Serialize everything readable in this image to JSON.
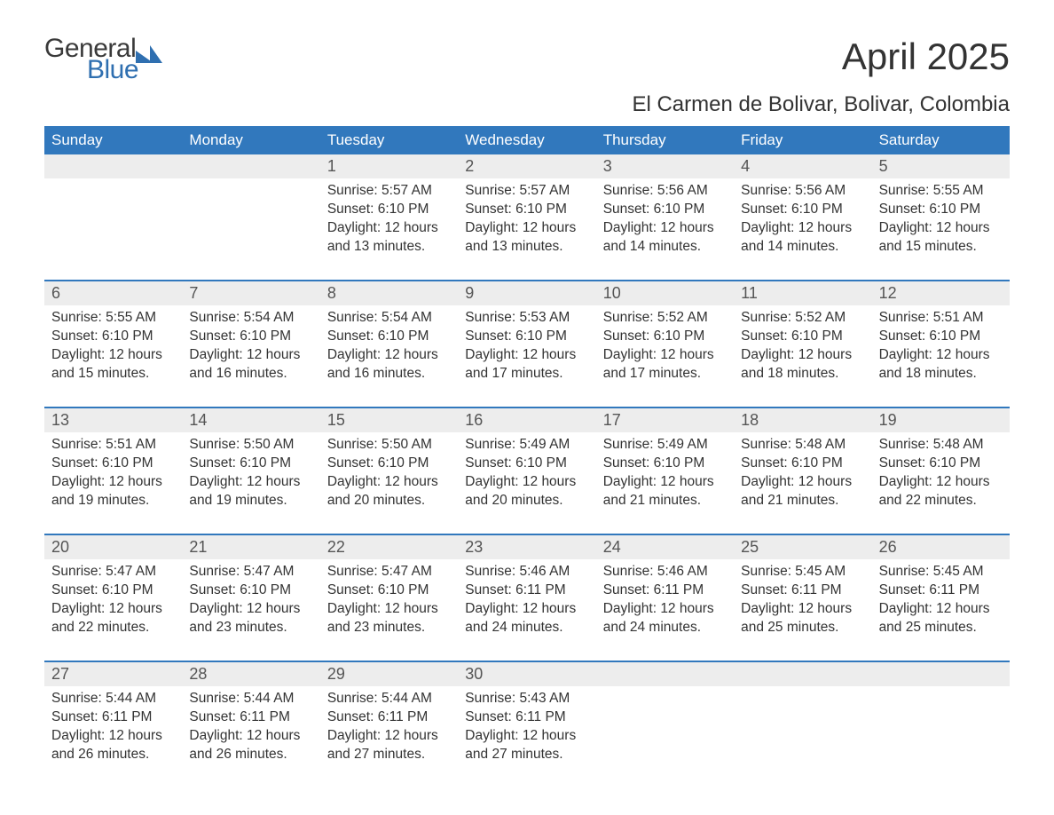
{
  "brand": {
    "line1": "General",
    "line2": "Blue"
  },
  "title": "April 2025",
  "location": "El Carmen de Bolivar, Bolivar, Colombia",
  "colors": {
    "header_bg": "#3178bd",
    "header_text": "#ffffff",
    "daynum_bg": "#ededed",
    "week_rule": "#3178bd",
    "body_text": "#333333",
    "brand_dark": "#3a3a3a",
    "brand_blue": "#2f6fb0",
    "page_bg": "#ffffff"
  },
  "typography": {
    "title_fontsize": 42,
    "location_fontsize": 24,
    "weekday_fontsize": 17,
    "daynum_fontsize": 18,
    "body_fontsize": 15.5,
    "font_family": "Arial"
  },
  "weekdays": [
    "Sunday",
    "Monday",
    "Tuesday",
    "Wednesday",
    "Thursday",
    "Friday",
    "Saturday"
  ],
  "weeks": [
    [
      {
        "n": "",
        "sr": "",
        "ss": "",
        "dl": ""
      },
      {
        "n": "",
        "sr": "",
        "ss": "",
        "dl": ""
      },
      {
        "n": "1",
        "sr": "5:57 AM",
        "ss": "6:10 PM",
        "dl": "12 hours and 13 minutes."
      },
      {
        "n": "2",
        "sr": "5:57 AM",
        "ss": "6:10 PM",
        "dl": "12 hours and 13 minutes."
      },
      {
        "n": "3",
        "sr": "5:56 AM",
        "ss": "6:10 PM",
        "dl": "12 hours and 14 minutes."
      },
      {
        "n": "4",
        "sr": "5:56 AM",
        "ss": "6:10 PM",
        "dl": "12 hours and 14 minutes."
      },
      {
        "n": "5",
        "sr": "5:55 AM",
        "ss": "6:10 PM",
        "dl": "12 hours and 15 minutes."
      }
    ],
    [
      {
        "n": "6",
        "sr": "5:55 AM",
        "ss": "6:10 PM",
        "dl": "12 hours and 15 minutes."
      },
      {
        "n": "7",
        "sr": "5:54 AM",
        "ss": "6:10 PM",
        "dl": "12 hours and 16 minutes."
      },
      {
        "n": "8",
        "sr": "5:54 AM",
        "ss": "6:10 PM",
        "dl": "12 hours and 16 minutes."
      },
      {
        "n": "9",
        "sr": "5:53 AM",
        "ss": "6:10 PM",
        "dl": "12 hours and 17 minutes."
      },
      {
        "n": "10",
        "sr": "5:52 AM",
        "ss": "6:10 PM",
        "dl": "12 hours and 17 minutes."
      },
      {
        "n": "11",
        "sr": "5:52 AM",
        "ss": "6:10 PM",
        "dl": "12 hours and 18 minutes."
      },
      {
        "n": "12",
        "sr": "5:51 AM",
        "ss": "6:10 PM",
        "dl": "12 hours and 18 minutes."
      }
    ],
    [
      {
        "n": "13",
        "sr": "5:51 AM",
        "ss": "6:10 PM",
        "dl": "12 hours and 19 minutes."
      },
      {
        "n": "14",
        "sr": "5:50 AM",
        "ss": "6:10 PM",
        "dl": "12 hours and 19 minutes."
      },
      {
        "n": "15",
        "sr": "5:50 AM",
        "ss": "6:10 PM",
        "dl": "12 hours and 20 minutes."
      },
      {
        "n": "16",
        "sr": "5:49 AM",
        "ss": "6:10 PM",
        "dl": "12 hours and 20 minutes."
      },
      {
        "n": "17",
        "sr": "5:49 AM",
        "ss": "6:10 PM",
        "dl": "12 hours and 21 minutes."
      },
      {
        "n": "18",
        "sr": "5:48 AM",
        "ss": "6:10 PM",
        "dl": "12 hours and 21 minutes."
      },
      {
        "n": "19",
        "sr": "5:48 AM",
        "ss": "6:10 PM",
        "dl": "12 hours and 22 minutes."
      }
    ],
    [
      {
        "n": "20",
        "sr": "5:47 AM",
        "ss": "6:10 PM",
        "dl": "12 hours and 22 minutes."
      },
      {
        "n": "21",
        "sr": "5:47 AM",
        "ss": "6:10 PM",
        "dl": "12 hours and 23 minutes."
      },
      {
        "n": "22",
        "sr": "5:47 AM",
        "ss": "6:10 PM",
        "dl": "12 hours and 23 minutes."
      },
      {
        "n": "23",
        "sr": "5:46 AM",
        "ss": "6:11 PM",
        "dl": "12 hours and 24 minutes."
      },
      {
        "n": "24",
        "sr": "5:46 AM",
        "ss": "6:11 PM",
        "dl": "12 hours and 24 minutes."
      },
      {
        "n": "25",
        "sr": "5:45 AM",
        "ss": "6:11 PM",
        "dl": "12 hours and 25 minutes."
      },
      {
        "n": "26",
        "sr": "5:45 AM",
        "ss": "6:11 PM",
        "dl": "12 hours and 25 minutes."
      }
    ],
    [
      {
        "n": "27",
        "sr": "5:44 AM",
        "ss": "6:11 PM",
        "dl": "12 hours and 26 minutes."
      },
      {
        "n": "28",
        "sr": "5:44 AM",
        "ss": "6:11 PM",
        "dl": "12 hours and 26 minutes."
      },
      {
        "n": "29",
        "sr": "5:44 AM",
        "ss": "6:11 PM",
        "dl": "12 hours and 27 minutes."
      },
      {
        "n": "30",
        "sr": "5:43 AM",
        "ss": "6:11 PM",
        "dl": "12 hours and 27 minutes."
      },
      {
        "n": "",
        "sr": "",
        "ss": "",
        "dl": ""
      },
      {
        "n": "",
        "sr": "",
        "ss": "",
        "dl": ""
      },
      {
        "n": "",
        "sr": "",
        "ss": "",
        "dl": ""
      }
    ]
  ],
  "labels": {
    "sunrise_prefix": "Sunrise: ",
    "sunset_prefix": "Sunset: ",
    "daylight_prefix": "Daylight: "
  }
}
